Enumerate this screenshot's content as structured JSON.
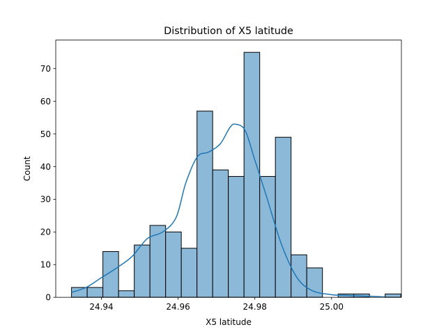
{
  "chart_data": {
    "type": "bar",
    "title": "Distribution of X5 latitude",
    "xlabel": "X5 latitude",
    "ylabel": "Count",
    "bin_start": 24.93221,
    "bin_width": 0.004088,
    "counts": [
      3,
      3,
      14,
      2,
      16,
      22,
      20,
      15,
      57,
      39,
      37,
      75,
      37,
      49,
      13,
      9,
      0,
      1,
      1,
      0,
      1
    ],
    "xlim": [
      24.9281,
      25.0182
    ],
    "ylim": [
      0,
      78.75
    ],
    "xticks": [
      {
        "value": 24.94,
        "label": "24.94"
      },
      {
        "value": 24.96,
        "label": "24.96"
      },
      {
        "value": 24.98,
        "label": "24.98"
      },
      {
        "value": 25.0,
        "label": "25.00"
      }
    ],
    "yticks": [
      {
        "value": 0,
        "label": "0"
      },
      {
        "value": 10,
        "label": "10"
      },
      {
        "value": 20,
        "label": "20"
      },
      {
        "value": 30,
        "label": "30"
      },
      {
        "value": 40,
        "label": "40"
      },
      {
        "value": 50,
        "label": "50"
      },
      {
        "value": 60,
        "label": "60"
      },
      {
        "value": 70,
        "label": "70"
      }
    ],
    "kde": [
      [
        24.9322,
        1.5
      ],
      [
        24.936,
        3.0
      ],
      [
        24.94,
        6.0
      ],
      [
        24.944,
        9.0
      ],
      [
        24.948,
        12.5
      ],
      [
        24.952,
        18.0
      ],
      [
        24.956,
        20.0
      ],
      [
        24.9595,
        24.5
      ],
      [
        24.962,
        35.0
      ],
      [
        24.965,
        43.0
      ],
      [
        24.968,
        44.5
      ],
      [
        24.971,
        47.0
      ],
      [
        24.9735,
        52.0
      ],
      [
        24.975,
        53.0
      ],
      [
        24.9775,
        51.0
      ],
      [
        24.98,
        42.0
      ],
      [
        24.983,
        31.0
      ],
      [
        24.987,
        16.0
      ],
      [
        24.991,
        6.0
      ],
      [
        24.995,
        2.0
      ],
      [
        25.0,
        0.8
      ],
      [
        25.004,
        0.6
      ],
      [
        25.008,
        0.4
      ],
      [
        25.012,
        0.2
      ],
      [
        25.0139,
        0.1
      ]
    ],
    "grid": false,
    "bar_color": "#8db9d9",
    "bar_edge_color": "#000000",
    "line_color": "#1f77b4"
  }
}
